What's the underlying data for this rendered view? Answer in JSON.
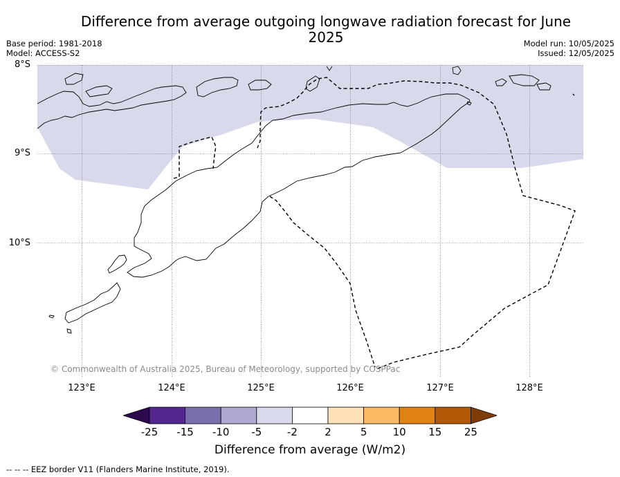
{
  "title": "Difference from average outgoing longwave radiation forecast for June 2025",
  "base_period": "Base period: 1981-2018",
  "model": "Model: ACCESS-S2",
  "model_run": "Model run: 10/05/2025",
  "issued": "Issued: 12/05/2025",
  "y_axis": {
    "ticks": [
      "8°S",
      "9°S",
      "10°S"
    ]
  },
  "x_axis": {
    "ticks": [
      "123°E",
      "124°E",
      "125°E",
      "126°E",
      "127°E",
      "128°E"
    ]
  },
  "copyright": "© Commonwealth of Australia 2025, Bureau of Meteorology, supported by COSPPac",
  "colorbar": {
    "title": "Difference from average (W/m2)",
    "ticks": [
      "-25",
      "-15",
      "-10",
      "-5",
      "-2",
      "2",
      "5",
      "10",
      "15",
      "25"
    ],
    "colors": [
      "#2d0a4e",
      "#54278f",
      "#7b6fab",
      "#aeaad2",
      "#d8d9ea",
      "#ffffff",
      "#fee1b6",
      "#fdb863",
      "#e08214",
      "#b35806",
      "#7f3b08"
    ]
  },
  "shaded_region": {
    "category": "-5 to -2",
    "color": "#d8d9ea"
  },
  "footnote": "-- -- -- EEZ border V11 (Flanders Marine Institute, 2019)."
}
